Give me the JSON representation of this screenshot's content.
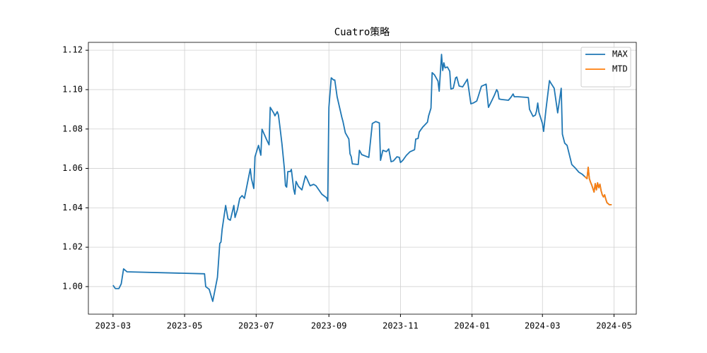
{
  "chart_data": {
    "type": "line",
    "title": "Cuatro策略",
    "xlim": [
      "2023-02-08",
      "2024-05-20"
    ],
    "xticks": [
      {
        "value": "2023-03-01",
        "label": "2023-03"
      },
      {
        "value": "2023-05-01",
        "label": "2023-05"
      },
      {
        "value": "2023-07-01",
        "label": "2023-07"
      },
      {
        "value": "2023-09-01",
        "label": "2023-09"
      },
      {
        "value": "2023-11-01",
        "label": "2023-11"
      },
      {
        "value": "2024-01-01",
        "label": "2024-01"
      },
      {
        "value": "2024-03-01",
        "label": "2024-03"
      },
      {
        "value": "2024-05-01",
        "label": "2024-05"
      }
    ],
    "ylim": [
      0.986,
      1.124
    ],
    "yticks": [
      {
        "value": 1,
        "label": "1.00"
      },
      1.02,
      1.04,
      1.06,
      1.08,
      {
        "value": 1.1,
        "label": "1.10"
      },
      1.12
    ],
    "grid": true,
    "legend": "upper right",
    "series": [
      {
        "name": "MAX",
        "color": "#1f77b4",
        "x": [
          "2023-03-01",
          "2023-03-03",
          "2023-03-06",
          "2023-03-08",
          "2023-03-10",
          "2023-03-13",
          "2023-05-18",
          "2023-05-19",
          "2023-05-22",
          "2023-05-25",
          "2023-05-29",
          "2023-05-31",
          "2023-06-01",
          "2023-06-02",
          "2023-06-05",
          "2023-06-07",
          "2023-06-09",
          "2023-06-12",
          "2023-06-13",
          "2023-06-15",
          "2023-06-17",
          "2023-06-19",
          "2023-06-21",
          "2023-06-26",
          "2023-06-27",
          "2023-06-29",
          "2023-06-30",
          "2023-07-03",
          "2023-07-05",
          "2023-07-06",
          "2023-07-10",
          "2023-07-12",
          "2023-07-13",
          "2023-07-16",
          "2023-07-17",
          "2023-07-19",
          "2023-07-20",
          "2023-07-21",
          "2023-07-23",
          "2023-07-25",
          "2023-07-26",
          "2023-07-27",
          "2023-07-28",
          "2023-07-30",
          "2023-07-31",
          "2023-08-02",
          "2023-08-03",
          "2023-08-04",
          "2023-08-06",
          "2023-08-09",
          "2023-08-12",
          "2023-08-13",
          "2023-08-16",
          "2023-08-19",
          "2023-08-21",
          "2023-08-26",
          "2023-08-30",
          "2023-08-31",
          "2023-09-01",
          "2023-09-03",
          "2023-09-05",
          "2023-09-06",
          "2023-09-08",
          "2023-09-12",
          "2023-09-13",
          "2023-09-15",
          "2023-09-18",
          "2023-09-19",
          "2023-09-20",
          "2023-09-21",
          "2023-09-26",
          "2023-09-27",
          "2023-09-29",
          "2023-10-05",
          "2023-10-08",
          "2023-10-11",
          "2023-10-14",
          "2023-10-15",
          "2023-10-17",
          "2023-10-20",
          "2023-10-22",
          "2023-10-24",
          "2023-10-26",
          "2023-10-29",
          "2023-10-31",
          "2023-11-01",
          "2023-11-03",
          "2023-11-06",
          "2023-11-09",
          "2023-11-13",
          "2023-11-14",
          "2023-11-16",
          "2023-11-17",
          "2023-11-20",
          "2023-11-24",
          "2023-11-25",
          "2023-11-27",
          "2023-11-28",
          "2023-11-30",
          "2023-12-03",
          "2023-12-04",
          "2023-12-06",
          "2023-12-07",
          "2023-12-08",
          "2023-12-09",
          "2023-12-11",
          "2023-12-13",
          "2023-12-14",
          "2023-12-16",
          "2023-12-18",
          "2023-12-19",
          "2023-12-21",
          "2023-12-24",
          "2023-12-27",
          "2023-12-28",
          "2023-12-31",
          "2024-01-02",
          "2024-01-05",
          "2024-01-06",
          "2024-01-09",
          "2024-01-13",
          "2024-01-15",
          "2024-01-18",
          "2024-01-20",
          "2024-01-22",
          "2024-01-23",
          "2024-01-24",
          "2024-01-26",
          "2024-02-01",
          "2024-02-03",
          "2024-02-05",
          "2024-02-06",
          "2024-02-09",
          "2024-02-18",
          "2024-02-19",
          "2024-02-22",
          "2024-02-24",
          "2024-02-25",
          "2024-02-26",
          "2024-02-27",
          "2024-03-01",
          "2024-03-02",
          "2024-03-04",
          "2024-03-07",
          "2024-03-08",
          "2024-03-11",
          "2024-03-14",
          "2024-03-17",
          "2024-03-18",
          "2024-03-20",
          "2024-03-22",
          "2024-03-26",
          "2024-03-29",
          "2024-04-01",
          "2024-04-04",
          "2024-04-06",
          "2024-04-08",
          "2024-04-09",
          "2024-04-10",
          "2024-04-11",
          "2024-04-12",
          "2024-04-14",
          "2024-04-15",
          "2024-04-16",
          "2024-04-17",
          "2024-04-18",
          "2024-04-19",
          "2024-04-20",
          "2024-04-21",
          "2024-04-22",
          "2024-04-23",
          "2024-04-24",
          "2024-04-25",
          "2024-04-27",
          "2024-04-29"
        ],
        "values": [
          1.0007,
          0.999,
          0.999,
          1.0014,
          1.009,
          1.0075,
          1.0065,
          1.0,
          0.9986,
          0.9925,
          1.0047,
          1.0219,
          1.0226,
          1.029,
          1.0412,
          1.0344,
          1.0337,
          1.0412,
          1.0351,
          1.039,
          1.0448,
          1.0462,
          1.0448,
          1.0598,
          1.0548,
          1.0498,
          1.0659,
          1.0717,
          1.0667,
          1.0799,
          1.0745,
          1.072,
          1.091,
          1.0881,
          1.0867,
          1.0888,
          1.0871,
          1.0824,
          1.0724,
          1.0602,
          1.0512,
          1.0505,
          1.0584,
          1.0584,
          1.0595,
          1.0494,
          1.0469,
          1.0534,
          1.0509,
          1.0491,
          1.0562,
          1.0552,
          1.0512,
          1.0519,
          1.0512,
          1.0469,
          1.0451,
          1.0434,
          1.091,
          1.106,
          1.1049,
          1.1049,
          1.0964,
          1.086,
          1.0838,
          1.0781,
          1.0749,
          1.0674,
          1.066,
          1.0623,
          1.062,
          1.0692,
          1.067,
          1.0656,
          1.0828,
          1.0838,
          1.0831,
          1.0641,
          1.0692,
          1.0685,
          1.0699,
          1.0634,
          1.0638,
          1.0659,
          1.0656,
          1.063,
          1.0641,
          1.0666,
          1.0684,
          1.0695,
          1.0749,
          1.0752,
          1.0785,
          1.081,
          1.0835,
          1.0867,
          1.0906,
          1.1086,
          1.1075,
          1.1043,
          1.0992,
          1.1179,
          1.1097,
          1.1136,
          1.1111,
          1.1115,
          1.1093,
          1.1003,
          1.1007,
          1.106,
          1.1064,
          1.1018,
          1.1014,
          1.1043,
          1.1053,
          1.0928,
          1.0932,
          1.0942,
          1.096,
          1.1017,
          1.1028,
          1.091,
          1.0946,
          1.0971,
          1.1,
          1.0989,
          1.0953,
          1.095,
          1.0946,
          1.096,
          1.0978,
          1.0964,
          1.0964,
          1.096,
          1.09,
          1.0864,
          1.0871,
          1.0892,
          1.0932,
          1.0885,
          1.0828,
          1.0788,
          1.0899,
          1.1046,
          1.1035,
          1.1007,
          1.0882,
          1.1007,
          1.0774,
          1.0728,
          1.0717,
          1.062,
          1.0602,
          1.0581,
          1.057,
          1.0559,
          1.0548,
          1.0606,
          1.0548,
          1.053,
          1.0516,
          1.048,
          1.0523,
          1.0491,
          1.0527,
          1.0502,
          1.052,
          1.0487,
          1.0466,
          1.0455,
          1.0466,
          1.0444,
          1.0426,
          1.0416,
          1.0416
        ]
      },
      {
        "name": "MTD",
        "color": "#ff7f0e",
        "x": [
          "2024-04-06",
          "2024-04-08",
          "2024-04-09",
          "2024-04-10",
          "2024-04-11",
          "2024-04-12",
          "2024-04-14",
          "2024-04-15",
          "2024-04-16",
          "2024-04-17",
          "2024-04-18",
          "2024-04-19",
          "2024-04-20",
          "2024-04-21",
          "2024-04-22",
          "2024-04-23",
          "2024-04-24",
          "2024-04-25",
          "2024-04-27",
          "2024-04-29"
        ],
        "values": [
          1.0559,
          1.0548,
          1.0606,
          1.0548,
          1.053,
          1.0516,
          1.048,
          1.0523,
          1.0491,
          1.0527,
          1.0502,
          1.052,
          1.0487,
          1.0466,
          1.0455,
          1.0466,
          1.0444,
          1.0426,
          1.0416,
          1.0416
        ]
      }
    ]
  }
}
